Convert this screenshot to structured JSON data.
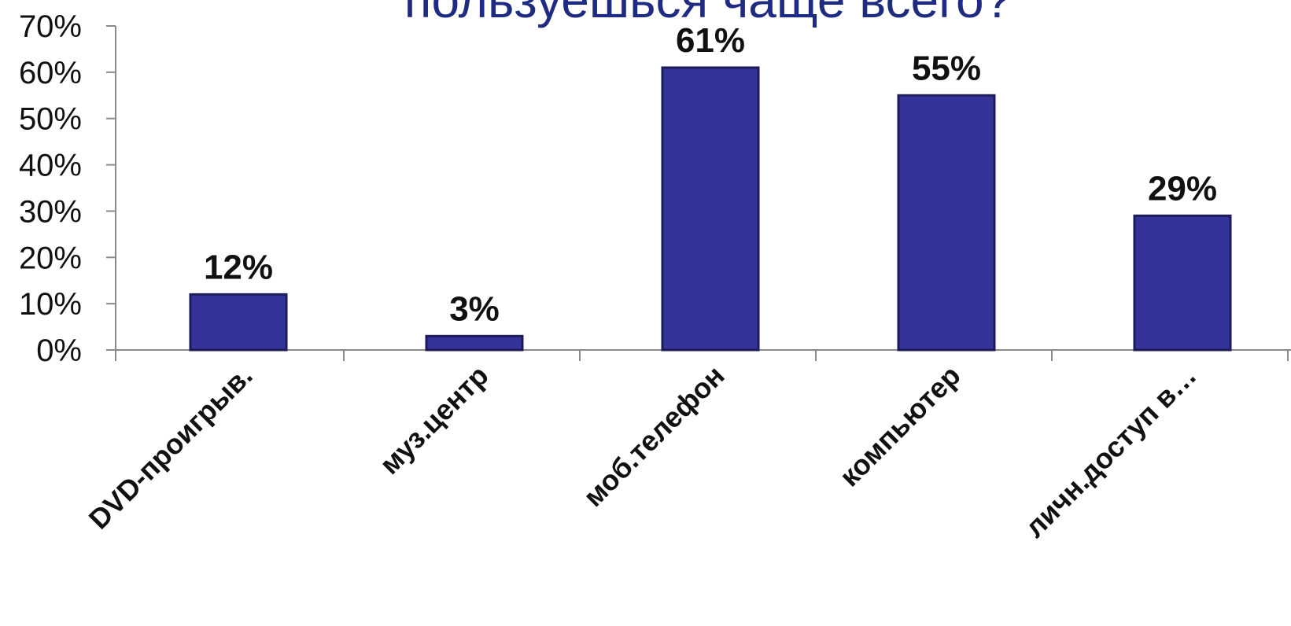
{
  "chart_data": {
    "type": "bar",
    "title": "пользуешься чаще всего?",
    "categories": [
      "DVD-проигрыв.",
      "муз.центр",
      "моб.телефон",
      "компьютер",
      "личн.доступ в…"
    ],
    "values": [
      12,
      3,
      61,
      55,
      29
    ],
    "data_labels": [
      "12%",
      "3%",
      "61%",
      "55%",
      "29%"
    ],
    "ytick_labels": [
      "0%",
      "10%",
      "20%",
      "30%",
      "40%",
      "50%",
      "60%",
      "70%"
    ],
    "ylim": [
      0,
      70
    ],
    "grid": false,
    "legend": "none",
    "bar_color": "#343399",
    "bar_edge_color": "#1c1c5a",
    "title_color": "#1f2b80"
  }
}
